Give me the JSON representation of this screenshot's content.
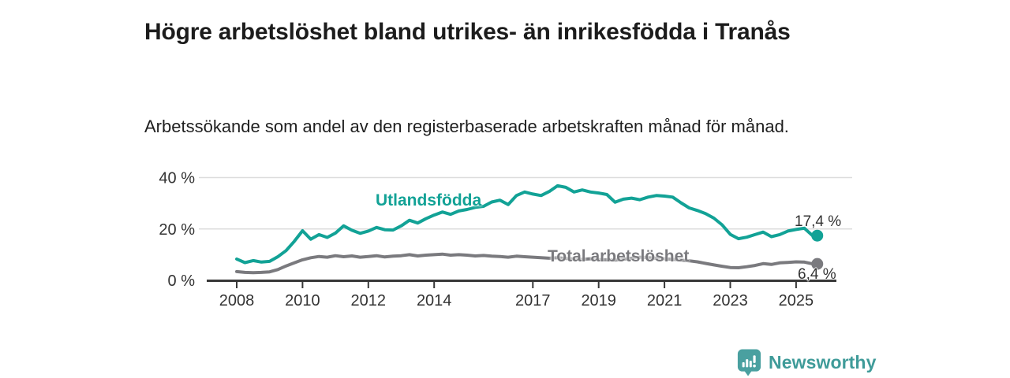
{
  "header": {
    "title": "Högre arbetslöshet bland utrikes- än inrikesfödda i Tranås",
    "subtitle": "Arbetssökande som andel av den registerbaserade arbetskraften månad för månad."
  },
  "chart_data": {
    "type": "line",
    "title": "Högre arbetslöshet bland utrikes- än inrikesfödda i Tranås",
    "subtitle": "Arbetssökande som andel av den registerbaserade arbetskraften månad för månad.",
    "unit": "%",
    "x_start": 2008.0,
    "x_step": 0.25,
    "xlim": [
      2008,
      2025.6
    ],
    "ylim": [
      0,
      42
    ],
    "grid": "horizontal",
    "legend_position": "inline-labels",
    "x_ticks": [
      2008,
      2010,
      2012,
      2014,
      2017,
      2019,
      2021,
      2023,
      2025
    ],
    "y_ticks": [
      {
        "value": 0,
        "label": "0 %"
      },
      {
        "value": 20,
        "label": "20 %"
      },
      {
        "value": 40,
        "label": "40 %"
      }
    ],
    "series": [
      {
        "name": "Utlandsfödda",
        "color": "#12a296",
        "end_value": 17.4,
        "end_label": "17,4 %",
        "values": [
          8.3,
          6.9,
          7.7,
          7.1,
          7.4,
          9.2,
          11.6,
          15.2,
          19.3,
          16.0,
          17.8,
          16.7,
          18.4,
          21.2,
          19.5,
          18.3,
          19.2,
          20.6,
          19.7,
          19.6,
          21.2,
          23.4,
          22.3,
          24.0,
          25.4,
          26.6,
          25.7,
          27.0,
          27.6,
          28.4,
          28.8,
          30.5,
          31.2,
          29.5,
          33.0,
          34.4,
          33.6,
          33.0,
          34.6,
          36.8,
          36.2,
          34.4,
          35.2,
          34.4,
          34.0,
          33.4,
          30.4,
          31.6,
          32.0,
          31.4,
          32.4,
          33.0,
          32.8,
          32.4,
          30.2,
          28.2,
          27.2,
          26.0,
          24.2,
          21.6,
          17.9,
          16.2,
          16.8,
          17.8,
          18.8,
          17.0,
          17.8,
          19.2,
          19.8,
          20.3,
          17.4
        ]
      },
      {
        "name": "Total arbetslöshet",
        "color": "#7a7a7e",
        "end_value": 6.4,
        "end_label": "6,4 %",
        "values": [
          3.4,
          3.1,
          3.0,
          3.1,
          3.3,
          4.2,
          5.6,
          6.8,
          8.0,
          8.8,
          9.3,
          9.0,
          9.6,
          9.2,
          9.5,
          9.0,
          9.3,
          9.6,
          9.1,
          9.4,
          9.6,
          10.0,
          9.5,
          9.8,
          10.0,
          10.2,
          9.8,
          10.0,
          9.8,
          9.5,
          9.7,
          9.4,
          9.3,
          9.0,
          9.4,
          9.2,
          9.0,
          8.8,
          8.6,
          8.8,
          8.5,
          8.3,
          8.2,
          8.4,
          8.1,
          8.0,
          7.9,
          8.2,
          8.6,
          9.0,
          8.8,
          8.6,
          8.4,
          8.2,
          7.9,
          7.6,
          7.2,
          6.6,
          6.0,
          5.5,
          5.0,
          4.9,
          5.3,
          5.8,
          6.5,
          6.2,
          6.8,
          7.0,
          7.2,
          7.1,
          6.4
        ]
      }
    ]
  },
  "footer": {
    "brand": "Newsworthy",
    "logo_icon": "newsworthy-bar-chart-bubble-icon",
    "logo_color": "#3f9b99",
    "logo_icon_color": "#4aa0a0"
  },
  "colors": {
    "background": "#ffffff",
    "title": "#1c1c1c",
    "subtitle": "#1f1f1f",
    "axis_text": "#333333",
    "axis_line": "#383838",
    "gridline": "#dcdcdc"
  }
}
